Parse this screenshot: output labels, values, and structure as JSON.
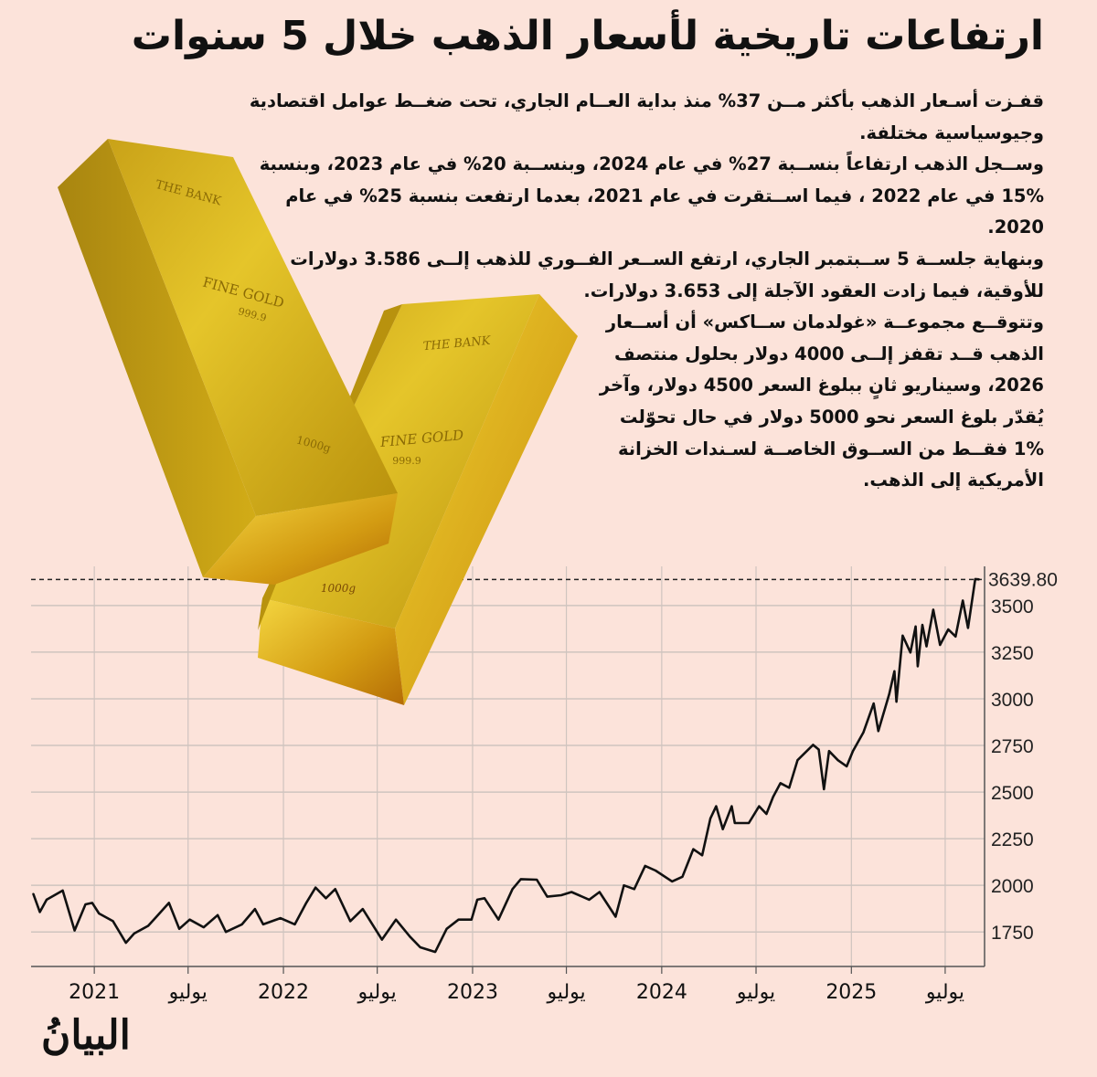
{
  "title": "ارتفاعات تاريخية لأسعار الذهب خلال 5 سنوات",
  "paragraphs": [
    [
      "قفـزت أسـعار الذهب بأكثر مــن 37% منذ بداية العــام الجاري، تحت ضغــط عوامل اقتصادية",
      "وجيوسياسية مختلفة."
    ],
    [
      "وســجل الذهب ارتفاعاً بنســبة 27% في عام 2024، وبنســبة 20% في عام 2023، وبنسبة",
      "15% في عام 2022 ، فيما اســتقرت في عام 2021، بعدما ارتفعت بنسبة 25% في عام",
      "2020."
    ],
    [
      "وبنهاية جلســة 5 ســبتمبر الجاري، ارتفع الســعر الفــوري للذهب إلــى 3.586 دولارات",
      "للأوقية، فيما زادت العقود الآجلة إلى 3.653 دولارات."
    ],
    [
      "وتتوقــع مجموعــة «غولدمان ســاكس» أن أســعار",
      "الذهب قــد تقفز إلــى 4000 دولار بحلول منتصف",
      "2026، وسيناريو ثانٍ ببلوغ السعر 4500 دولار، وآخر",
      "يُقدّر بلوغ السعر نحو 5000 دولار في حال تحوّلت",
      "1% فقــط من الســوق الخاصــة لسـندات الخزانة",
      "الأمريكية إلى الذهب."
    ]
  ],
  "image": {
    "bar1_labels": [
      "THE BANK",
      "FINE GOLD",
      "999.9",
      "1000g"
    ],
    "bar2_labels": [
      "THE BANK",
      "FINE GOLD",
      "999.9",
      "1000g"
    ]
  },
  "logo": "البيانُ",
  "colors": {
    "background": "#fce3da",
    "line": "#111111",
    "last_value": "#9b3a6a",
    "grid": "#cfc4bf"
  },
  "chart_data": {
    "type": "line",
    "title": "",
    "xlabel": "",
    "ylabel": "",
    "xlim": [
      "2020-09-01",
      "2025-09-15"
    ],
    "ylim": [
      1565,
      3710
    ],
    "grid": true,
    "y_axis_position": "right",
    "yticks": [
      1750,
      2000,
      2250,
      2500,
      2750,
      3000,
      3250,
      3500
    ],
    "xticks": [
      {
        "date": "2021-01-01",
        "label": "2021"
      },
      {
        "date": "2021-07-01",
        "label": "يوليو"
      },
      {
        "date": "2022-01-01",
        "label": "2022"
      },
      {
        "date": "2022-07-01",
        "label": "يوليو"
      },
      {
        "date": "2023-01-01",
        "label": "2023"
      },
      {
        "date": "2023-07-01",
        "label": "يوليو"
      },
      {
        "date": "2024-01-01",
        "label": "2024"
      },
      {
        "date": "2024-07-01",
        "label": "يوليو"
      },
      {
        "date": "2025-01-01",
        "label": "2025"
      },
      {
        "date": "2025-07-01",
        "label": "يوليو"
      }
    ],
    "last_value": {
      "value": 3639.8,
      "label": "3639.80"
    },
    "series": [
      {
        "x": [
          "2020-09-05",
          "2020-09-18",
          "2020-10-01",
          "2020-11-01",
          "2020-11-24",
          "2020-12-15",
          "2020-12-28",
          "2021-01-10",
          "2021-02-06",
          "2021-03-03",
          "2021-03-19",
          "2021-04-15",
          "2021-05-01",
          "2021-05-25",
          "2021-06-14",
          "2021-07-04",
          "2021-07-31",
          "2021-08-27",
          "2021-09-12",
          "2021-10-13",
          "2021-11-07",
          "2021-11-23",
          "2021-12-26",
          "2022-01-23",
          "2022-02-14",
          "2022-03-04",
          "2022-03-24",
          "2022-04-11",
          "2022-05-10",
          "2022-06-03",
          "2022-07-10",
          "2022-08-06",
          "2022-09-02",
          "2022-09-22",
          "2022-10-21",
          "2022-11-12",
          "2022-12-05",
          "2022-12-30",
          "2023-01-10",
          "2023-01-24",
          "2023-02-20",
          "2023-03-19",
          "2023-04-04",
          "2023-05-05",
          "2023-05-25",
          "2023-06-21",
          "2023-07-11",
          "2023-08-14",
          "2023-09-03",
          "2023-10-04",
          "2023-10-20",
          "2023-11-09",
          "2023-11-30",
          "2023-12-20",
          "2024-01-21",
          "2024-02-10",
          "2024-03-02",
          "2024-03-19",
          "2024-04-04",
          "2024-04-15",
          "2024-04-28",
          "2024-05-15",
          "2024-05-21",
          "2024-06-17",
          "2024-07-07",
          "2024-07-21",
          "2024-08-03",
          "2024-08-17",
          "2024-09-03",
          "2024-09-19",
          "2024-10-19",
          "2024-10-30",
          "2024-11-09",
          "2024-11-19",
          "2024-12-06",
          "2024-12-23",
          "2025-01-04",
          "2025-01-24",
          "2025-02-13",
          "2025-02-22",
          "2025-03-15",
          "2025-03-25",
          "2025-03-29",
          "2025-04-10",
          "2025-04-25",
          "2025-05-05",
          "2025-05-09",
          "2025-05-18",
          "2025-05-26",
          "2025-06-08",
          "2025-06-21",
          "2025-07-07",
          "2025-07-21",
          "2025-08-04",
          "2025-08-14",
          "2025-08-28",
          "2025-09-05"
        ],
        "y": [
          1956,
          1857,
          1923,
          1972,
          1758,
          1898,
          1906,
          1849,
          1808,
          1692,
          1742,
          1783,
          1832,
          1906,
          1767,
          1816,
          1775,
          1840,
          1750,
          1791,
          1873,
          1791,
          1824,
          1791,
          1906,
          1988,
          1931,
          1980,
          1808,
          1873,
          1709,
          1816,
          1725,
          1668,
          1643,
          1767,
          1816,
          1816,
          1923,
          1931,
          1816,
          1980,
          2033,
          2030,
          1939,
          1947,
          1964,
          1923,
          1964,
          1832,
          2000,
          1980,
          2104,
          2079,
          2021,
          2046,
          2194,
          2161,
          2359,
          2424,
          2301,
          2424,
          2334,
          2334,
          2424,
          2383,
          2474,
          2548,
          2523,
          2671,
          2753,
          2728,
          2515,
          2720,
          2671,
          2638,
          2720,
          2819,
          2975,
          2827,
          3025,
          3148,
          2984,
          3339,
          3248,
          3388,
          3174,
          3396,
          3281,
          3478,
          3289,
          3372,
          3334,
          3527,
          3380,
          3642,
          3639.8
        ]
      }
    ]
  }
}
